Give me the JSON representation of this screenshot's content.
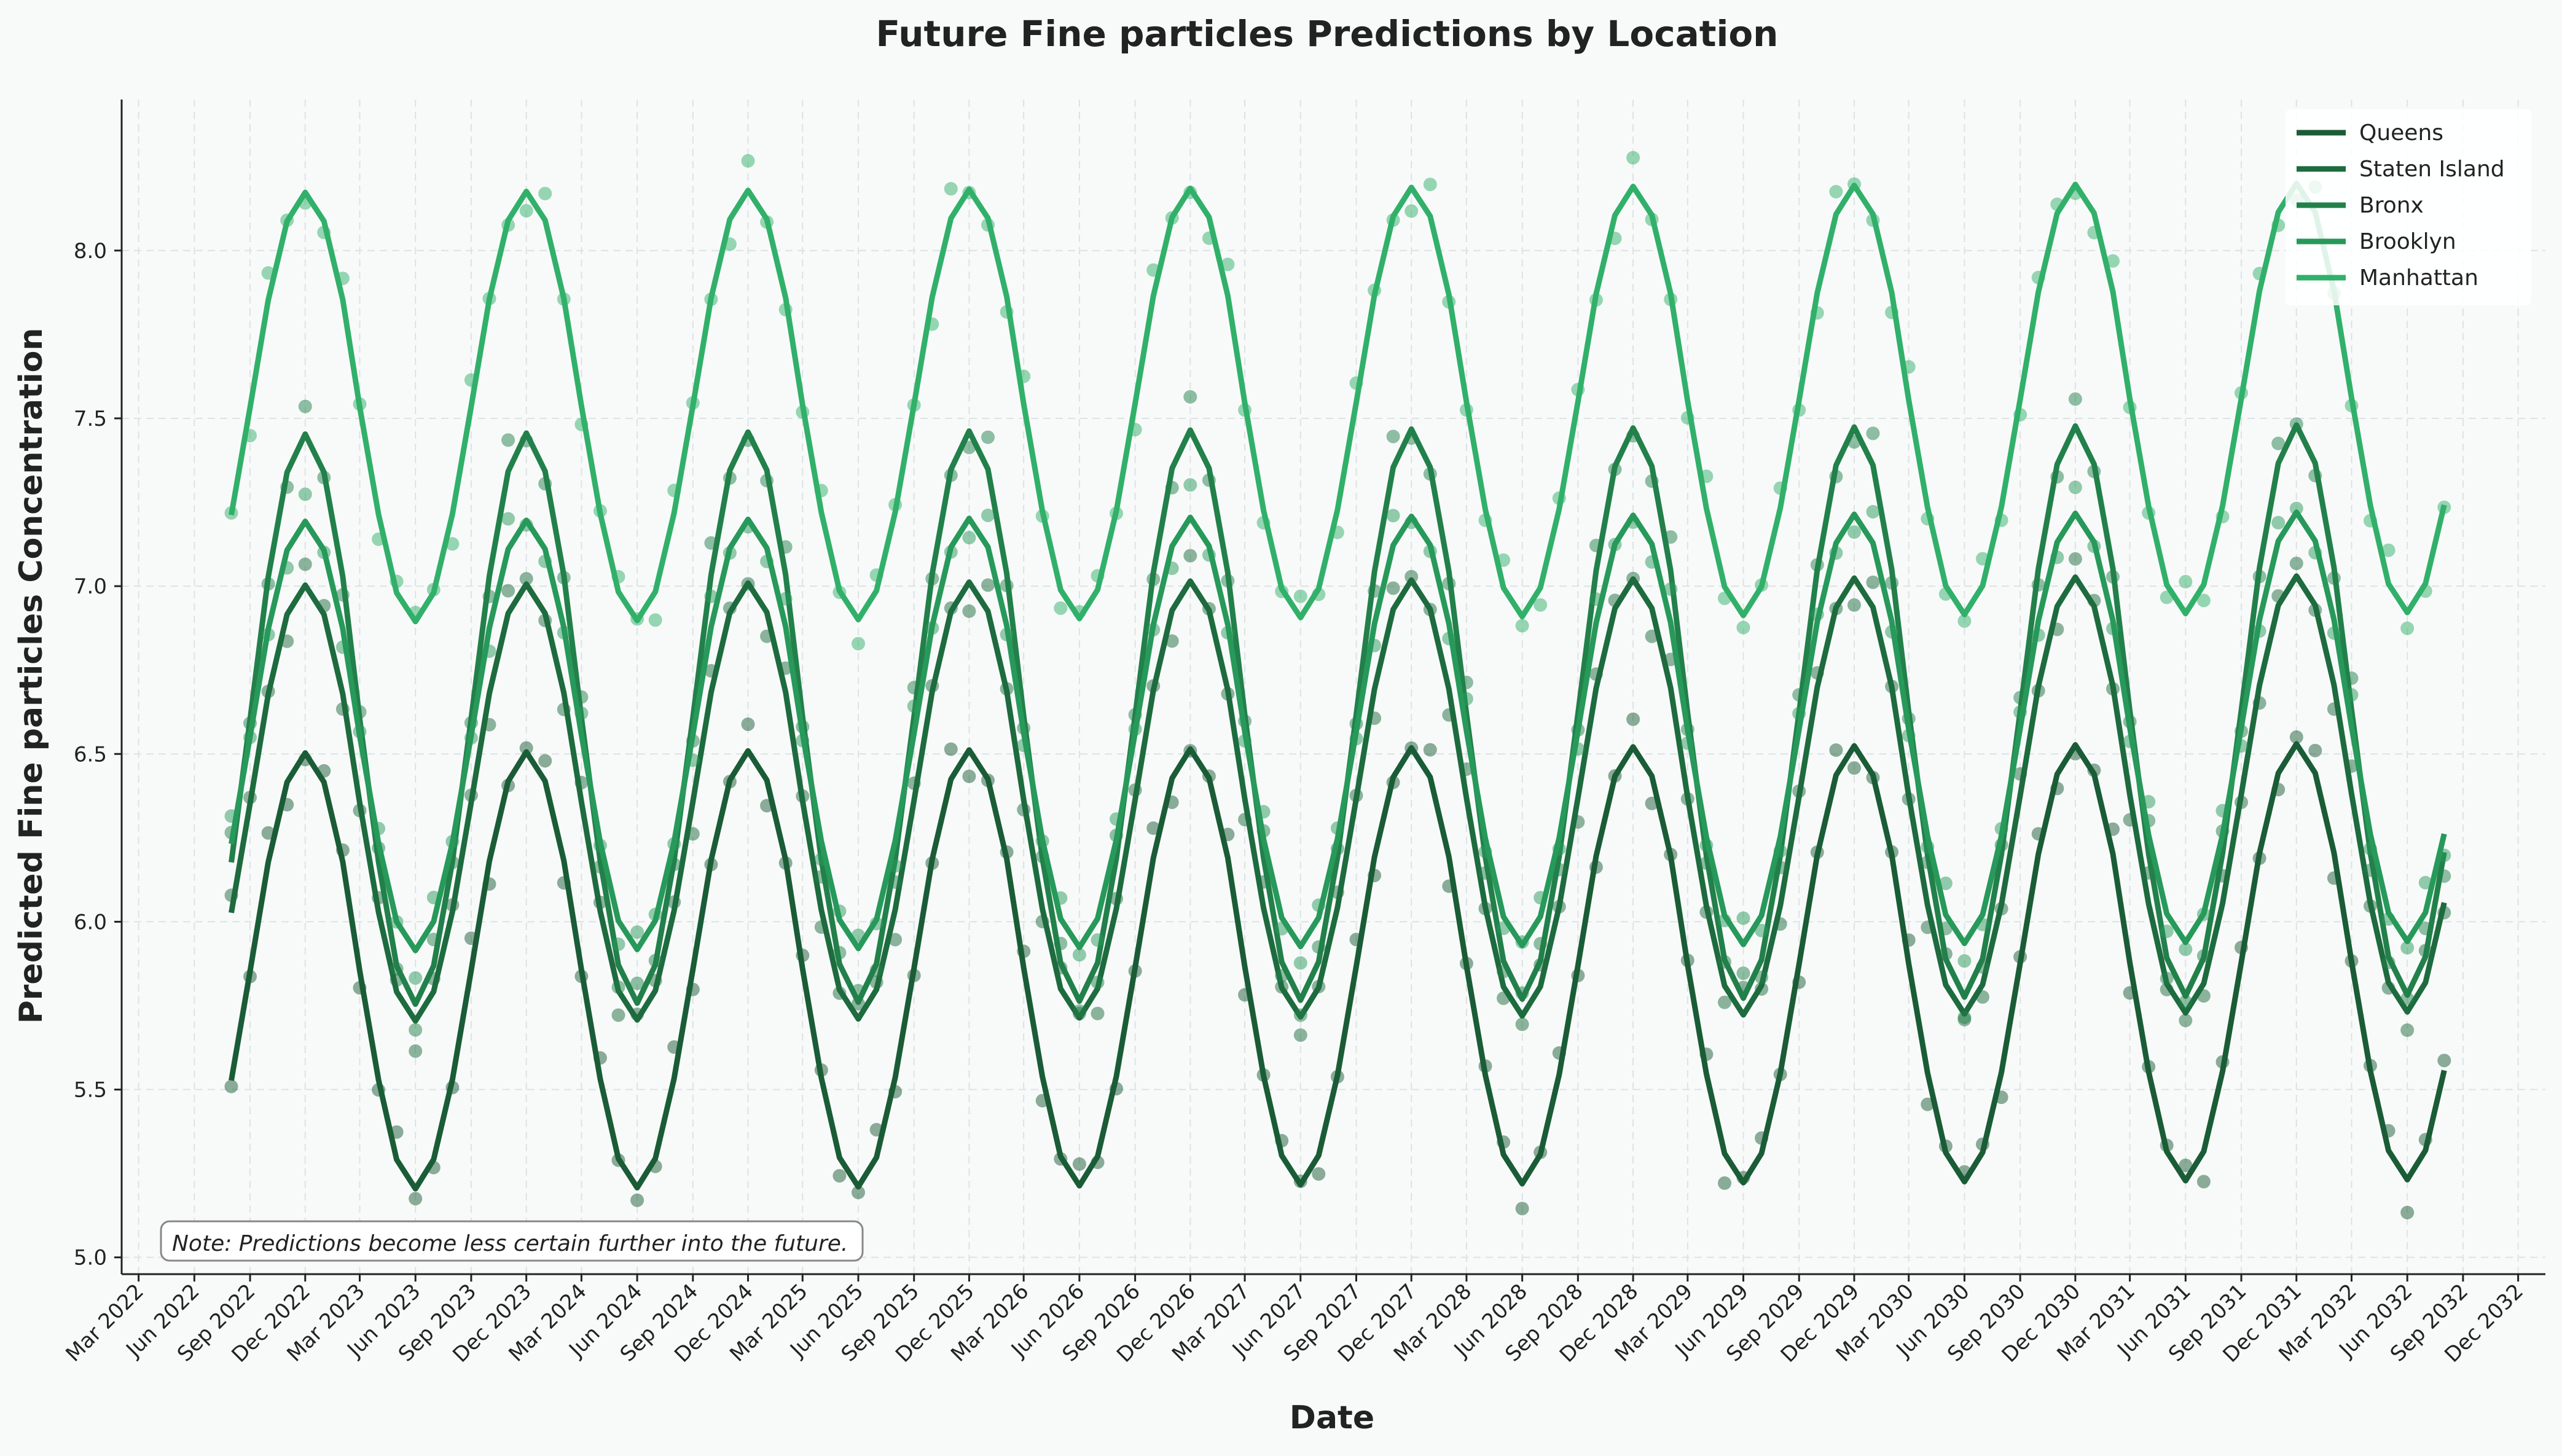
{
  "chart_data": {
    "type": "line",
    "title": "Future Fine particles Predictions by Location",
    "xlabel": "Date",
    "ylabel": "Predicted Fine particles Concentration",
    "ylim": [
      4.95,
      8.45
    ],
    "yticks": [
      5.0,
      5.5,
      6.0,
      6.5,
      7.0,
      7.5,
      8.0
    ],
    "ytick_labels": [
      "5.0",
      "5.5",
      "6.0",
      "6.5",
      "7.0",
      "7.5",
      "8.0"
    ],
    "xlim": [
      "2022-02-01",
      "2033-01-15"
    ],
    "xtick_labels": [
      "Mar 2022",
      "Jun 2022",
      "Sep 2022",
      "Dec 2022",
      "Mar 2023",
      "Jun 2023",
      "Sep 2023",
      "Dec 2023",
      "Mar 2024",
      "Jun 2024",
      "Sep 2024",
      "Dec 2024",
      "Mar 2025",
      "Jun 2025",
      "Sep 2025",
      "Dec 2025",
      "Mar 2026",
      "Jun 2026",
      "Sep 2026",
      "Dec 2026",
      "Mar 2027",
      "Jun 2027",
      "Sep 2027",
      "Dec 2027",
      "Mar 2028",
      "Jun 2028",
      "Sep 2028",
      "Dec 2028",
      "Mar 2029",
      "Jun 2029",
      "Sep 2029",
      "Dec 2029",
      "Mar 2030",
      "Jun 2030",
      "Sep 2030",
      "Dec 2030",
      "Mar 2031",
      "Jun 2031",
      "Sep 2031",
      "Dec 2031",
      "Mar 2032",
      "Jun 2032",
      "Sep 2032",
      "Dec 2032"
    ],
    "x_start": "2022-08",
    "x_end": "2032-08",
    "grid": true,
    "legend_position": "top-right",
    "annotation": "Note: Predictions become less certain further into the future.",
    "series": [
      {
        "name": "Queens",
        "color": "#1a5c36",
        "mean": 5.85,
        "amplitude": 0.65,
        "peak_month": 12,
        "trend_per_year": 0.003
      },
      {
        "name": "Staten Island",
        "color": "#1d6b3e",
        "mean": 6.35,
        "amplitude": 0.65,
        "peak_month": 12,
        "trend_per_year": 0.003
      },
      {
        "name": "Bronx",
        "color": "#22804a",
        "mean": 6.6,
        "amplitude": 0.85,
        "peak_month": 12,
        "trend_per_year": 0.003
      },
      {
        "name": "Brooklyn",
        "color": "#27995a",
        "mean": 6.55,
        "amplitude": 0.64,
        "peak_month": 12,
        "trend_per_year": 0.003
      },
      {
        "name": "Manhattan",
        "color": "#31b06a",
        "mean": 7.53,
        "amplitude": 0.64,
        "peak_month": 12,
        "trend_per_year": 0.003
      }
    ]
  }
}
